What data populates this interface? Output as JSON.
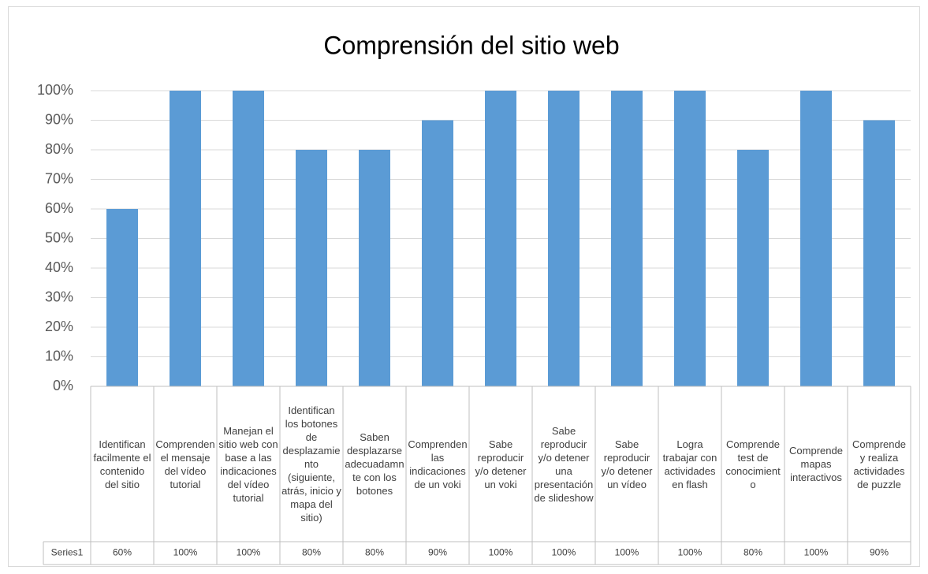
{
  "chart_data": {
    "type": "bar",
    "title": "Comprensión del sitio web",
    "categories": [
      "Identifican facilmente el contenido del sitio",
      "Comprenden el mensaje del vídeo tutorial",
      "Manejan el sitio web con base a las indicaciones del vídeo tutorial",
      "Identifican los botones de desplazamiento (siguiente, atrás, inicio y mapa del sitio)",
      "Saben desplazarse adecuadamnte con los botones",
      "Comprenden las indicaciones de un voki",
      "Sabe reproducir y/o detener un voki",
      "Sabe reproducir y/o detener una presentación de slideshow",
      "Sabe reproducir y/o detener un vídeo",
      "Logra trabajar con actividades en flash",
      "Comprende test de conocimiento",
      "Comprende mapas interactivos",
      "Comprende y realiza actividades de puzzle"
    ],
    "series": [
      {
        "name": "Series1",
        "color": "#5b9bd5",
        "values": [
          60,
          100,
          100,
          80,
          80,
          90,
          100,
          100,
          100,
          100,
          80,
          100,
          90
        ],
        "value_labels": [
          "60%",
          "100%",
          "100%",
          "80%",
          "80%",
          "90%",
          "100%",
          "100%",
          "100%",
          "100%",
          "80%",
          "100%",
          "90%"
        ]
      }
    ],
    "ylim": [
      0,
      100
    ],
    "yticks": [
      {
        "value": 0,
        "label": "0%"
      },
      {
        "value": 10,
        "label": "10%"
      },
      {
        "value": 20,
        "label": "20%"
      },
      {
        "value": 30,
        "label": "30%"
      },
      {
        "value": 40,
        "label": "40%"
      },
      {
        "value": 50,
        "label": "50%"
      },
      {
        "value": 60,
        "label": "60%"
      },
      {
        "value": 70,
        "label": "70%"
      },
      {
        "value": 80,
        "label": "80%"
      },
      {
        "value": 90,
        "label": "90%"
      },
      {
        "value": 100,
        "label": "100%"
      }
    ],
    "grid": true,
    "data_table": true
  }
}
